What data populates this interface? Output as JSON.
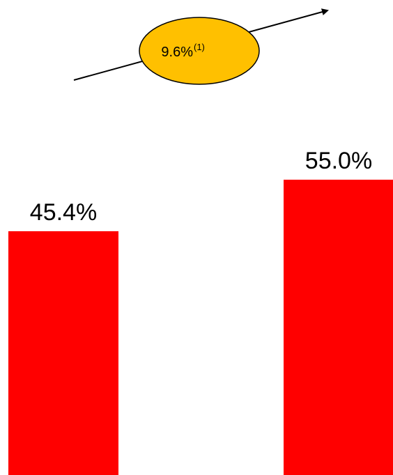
{
  "chart_data": {
    "type": "bar",
    "categories": [
      "",
      ""
    ],
    "values": [
      45.4,
      55.0
    ],
    "value_labels": [
      "45.4%",
      "55.0%"
    ],
    "ylim": [
      0,
      55.0
    ],
    "bar_color": "#ff0000",
    "annotation": {
      "text": "9.6%",
      "note": "(1)",
      "fill": "#ffc000",
      "stroke": "#000000",
      "arrow_direction": "up-right"
    },
    "title": "",
    "xlabel": "",
    "ylabel": "",
    "grid": false,
    "legend": "none"
  }
}
